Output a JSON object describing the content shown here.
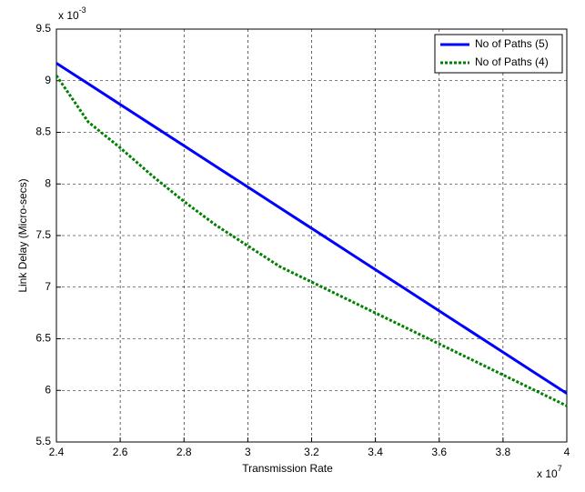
{
  "chart_data": {
    "type": "line",
    "xlabel": "Transmission Rate",
    "ylabel": "Link Delay (Micro-secs)",
    "x_multiplier": {
      "base": "x 10",
      "exponent": "7"
    },
    "y_multiplier": {
      "base": "x 10",
      "exponent": "-3"
    },
    "x": [
      2.4,
      2.5,
      2.6,
      2.7,
      2.8,
      2.9,
      3.0,
      3.1,
      3.2,
      3.3,
      3.4,
      3.5,
      3.6,
      3.7,
      3.8,
      3.9,
      4.0
    ],
    "series": [
      {
        "name": "No of Paths (5)",
        "color": "#0000ff",
        "style": "solid",
        "values": [
          9.17,
          8.97,
          8.77,
          8.57,
          8.37,
          8.17,
          7.97,
          7.77,
          7.57,
          7.37,
          7.17,
          6.97,
          6.77,
          6.57,
          6.37,
          6.17,
          5.97
        ]
      },
      {
        "name": "No of Paths (4)",
        "color": "#008000",
        "style": "dotted",
        "values": [
          9.05,
          8.6,
          8.35,
          8.08,
          7.83,
          7.6,
          7.4,
          7.2,
          7.05,
          6.9,
          6.75,
          6.6,
          6.45,
          6.3,
          6.15,
          6.0,
          5.85
        ]
      }
    ],
    "xlim": [
      2.4,
      4
    ],
    "xticks": [
      2.4,
      2.6,
      2.8,
      3,
      3.2,
      3.4,
      3.6,
      3.8,
      4
    ],
    "ylim": [
      5.5,
      9.5
    ],
    "yticks": [
      5.5,
      6,
      6.5,
      7,
      7.5,
      8,
      8.5,
      9,
      9.5
    ],
    "grid": true,
    "legend": "top-right"
  }
}
